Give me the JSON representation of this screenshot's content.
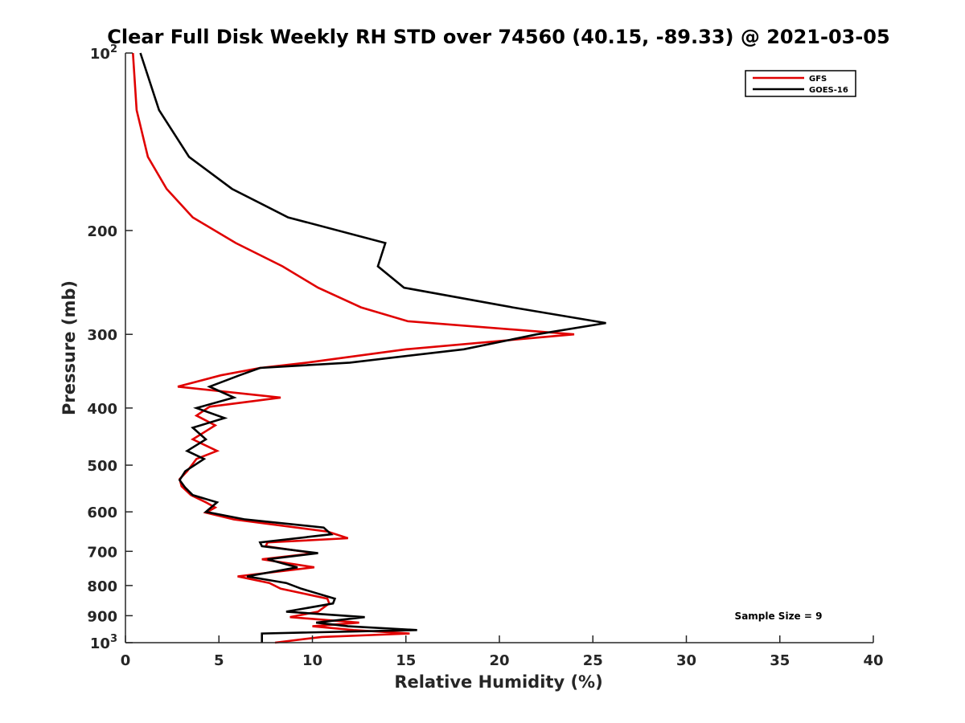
{
  "chart_data": {
    "type": "line",
    "title": "Clear Full Disk Weekly RH STD over 74560 (40.15, -89.33) @ 2021-03-05",
    "xlabel": "Relative Humidity (%)",
    "ylabel": "Pressure (mb)",
    "xlim": [
      0,
      40
    ],
    "ylim": [
      100,
      1000
    ],
    "yscale": "log",
    "y_reversed": true,
    "grid": false,
    "legend_position": "top-right",
    "x_ticks": [
      "0",
      "5",
      "10",
      "15",
      "20",
      "25",
      "30",
      "35",
      "40"
    ],
    "y_ticks": [
      {
        "value": 100,
        "base": "10",
        "exp": "2"
      },
      {
        "value": 200,
        "label": "200"
      },
      {
        "value": 300,
        "label": "300"
      },
      {
        "value": 400,
        "label": "400"
      },
      {
        "value": 500,
        "label": "500"
      },
      {
        "value": 600,
        "label": "600"
      },
      {
        "value": 700,
        "label": "700"
      },
      {
        "value": 800,
        "label": "800"
      },
      {
        "value": 900,
        "label": "900"
      },
      {
        "value": 1000,
        "base": "10",
        "exp": "3"
      }
    ],
    "annotation": "Sample Size = 9",
    "series": [
      {
        "name": "GFS",
        "color": "#e00000",
        "points": [
          [
            0.4,
            100
          ],
          [
            0.6,
            125
          ],
          [
            1.2,
            150
          ],
          [
            2.2,
            170
          ],
          [
            3.6,
            190
          ],
          [
            5.9,
            210
          ],
          [
            8.4,
            230
          ],
          [
            10.3,
            250
          ],
          [
            12.6,
            270
          ],
          [
            15.1,
            285
          ],
          [
            24.0,
            300
          ],
          [
            15.0,
            318
          ],
          [
            9.7,
            335
          ],
          [
            7.2,
            342
          ],
          [
            5.1,
            352
          ],
          [
            2.8,
            368
          ],
          [
            8.3,
            384
          ],
          [
            4.5,
            398
          ],
          [
            3.8,
            412
          ],
          [
            4.8,
            428
          ],
          [
            3.6,
            452
          ],
          [
            4.9,
            473
          ],
          [
            3.8,
            488
          ],
          [
            3.3,
            512
          ],
          [
            2.9,
            528
          ],
          [
            3.0,
            543
          ],
          [
            3.5,
            562
          ],
          [
            4.3,
            578
          ],
          [
            4.8,
            590
          ],
          [
            4.3,
            602
          ],
          [
            5.8,
            618
          ],
          [
            10.8,
            648
          ],
          [
            11.9,
            665
          ],
          [
            7.6,
            676
          ],
          [
            7.5,
            686
          ],
          [
            10.1,
            705
          ],
          [
            7.3,
            722
          ],
          [
            10.1,
            745
          ],
          [
            6.0,
            772
          ],
          [
            7.7,
            792
          ],
          [
            8.3,
            810
          ],
          [
            10.8,
            842
          ],
          [
            10.9,
            858
          ],
          [
            10.3,
            886
          ],
          [
            8.8,
            905
          ],
          [
            12.5,
            925
          ],
          [
            10.0,
            938
          ],
          [
            12.2,
            952
          ],
          [
            15.2,
            965
          ],
          [
            10.5,
            978
          ],
          [
            8.0,
            1000
          ]
        ]
      },
      {
        "name": "GOES-16",
        "color": "#000000",
        "points": [
          [
            0.8,
            100
          ],
          [
            1.8,
            125
          ],
          [
            3.4,
            150
          ],
          [
            5.7,
            170
          ],
          [
            8.7,
            190
          ],
          [
            13.9,
            210
          ],
          [
            13.5,
            230
          ],
          [
            14.9,
            250
          ],
          [
            20.7,
            270
          ],
          [
            25.7,
            287
          ],
          [
            22.0,
            300
          ],
          [
            18.1,
            318
          ],
          [
            12.0,
            335
          ],
          [
            7.2,
            342
          ],
          [
            6.1,
            352
          ],
          [
            4.5,
            368
          ],
          [
            5.8,
            384
          ],
          [
            3.8,
            400
          ],
          [
            5.3,
            416
          ],
          [
            3.6,
            432
          ],
          [
            4.3,
            452
          ],
          [
            3.3,
            473
          ],
          [
            4.2,
            488
          ],
          [
            3.2,
            512
          ],
          [
            2.9,
            530
          ],
          [
            3.2,
            546
          ],
          [
            3.6,
            562
          ],
          [
            4.9,
            578
          ],
          [
            4.3,
            600
          ],
          [
            6.4,
            618
          ],
          [
            10.6,
            638
          ],
          [
            11.0,
            655
          ],
          [
            7.2,
            676
          ],
          [
            7.3,
            686
          ],
          [
            10.3,
            705
          ],
          [
            7.6,
            722
          ],
          [
            9.2,
            745
          ],
          [
            6.5,
            772
          ],
          [
            8.6,
            792
          ],
          [
            9.4,
            810
          ],
          [
            11.2,
            842
          ],
          [
            11.1,
            858
          ],
          [
            8.6,
            886
          ],
          [
            12.8,
            905
          ],
          [
            10.2,
            925
          ],
          [
            11.9,
            938
          ],
          [
            15.6,
            952
          ],
          [
            7.3,
            965
          ],
          [
            7.3,
            1000
          ]
        ]
      }
    ]
  }
}
